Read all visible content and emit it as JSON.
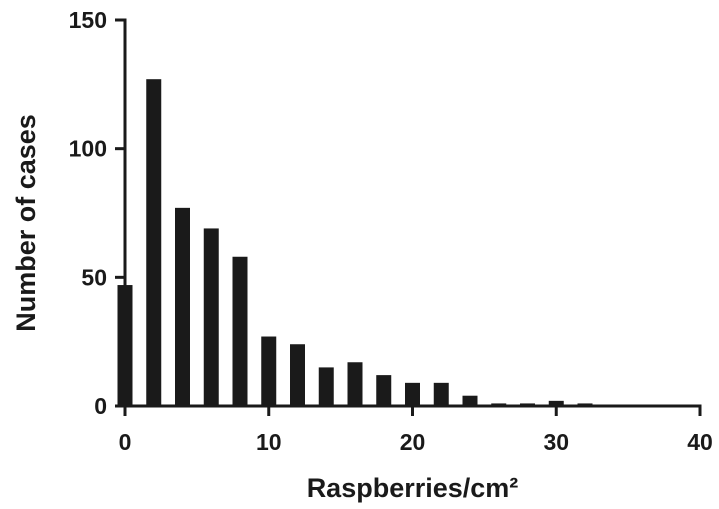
{
  "chart_data": {
    "type": "bar",
    "title": "",
    "xlabel": "Raspberries/cm²",
    "ylabel": "Number of cases",
    "xlim": [
      0,
      40
    ],
    "ylim": [
      0,
      150
    ],
    "x_ticks": [
      "0",
      "10",
      "20",
      "30",
      "40"
    ],
    "y_ticks": [
      "0",
      "50",
      "100",
      "150"
    ],
    "x": [
      0,
      2,
      4,
      6,
      8,
      10,
      12,
      14,
      16,
      18,
      20,
      22,
      24,
      26,
      28,
      30,
      32
    ],
    "values": [
      47,
      127,
      77,
      69,
      58,
      27,
      24,
      15,
      17,
      12,
      9,
      9,
      4,
      1,
      1,
      2,
      1
    ],
    "bar_color": "#1a1a1a",
    "grid": false,
    "legend": "none"
  }
}
